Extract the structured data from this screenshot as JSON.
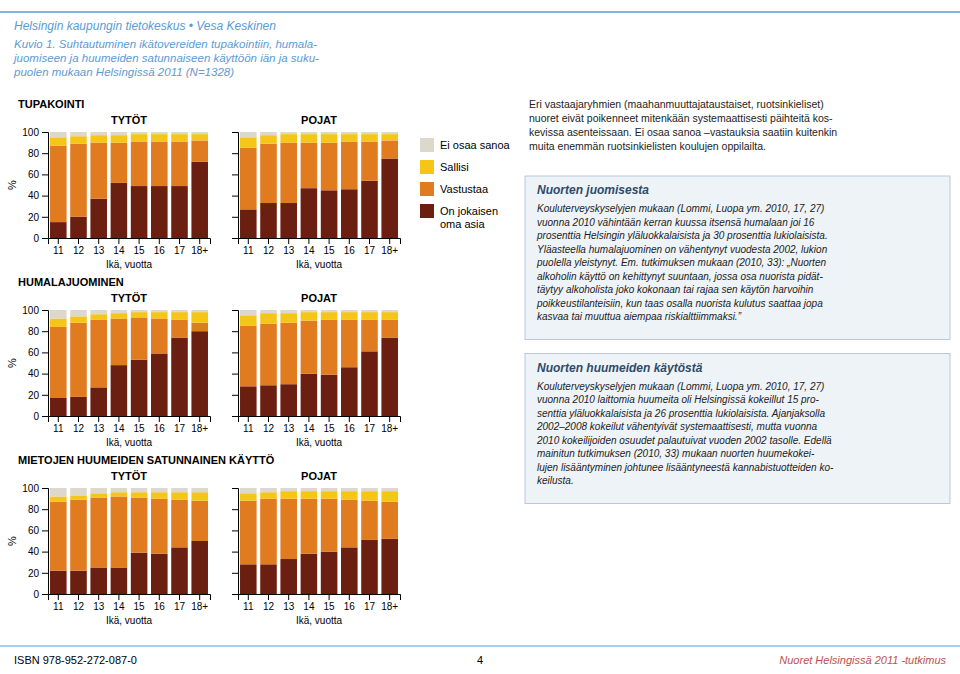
{
  "title": "Kuvio 1. Suhtautuminen ikätovereiden tupakointiin, humala-\njuomiseen ja huumeiden satunnaiseen käyttöön iän ja suku-\npuolen mukaan Helsingissä 2011 (N=1328)",
  "annotations": [
    "Helsingin kaupungin tietokeskus • Vesa Keskinen",
    "Eri vastaajaryhmien (maahanmuuttajataustaiset, ruotsinkieliset)\nnuoret eivät poikenneet mitenkään systemaattisesti päihteitä kos-\nkevissa asenteissaan.  Ei osaa sanoa –vastauksia saatiin kuitenkin\nmuita enemmän ruotsinkielisten koulujen oppilailta.",
    "Nuorten juomisesta",
    "Kouluterveyskyselyjen mukaan (Lommi, Luopa ym. 2010, 17, 27)\nvuonna 2010 vähintään kerran kuussa itsensä humalaan joi 16\nprosenttia Helsingin yläluokkalaisista ja 30 prosenttia lukiolaisista.\nYläasteella humalajuominen on vähentynyt vuodesta 2002, lukion\npuolella yleistynyt. Em. tutkimuksen mukaan (2010, 33): „Nuorten\nalkoholin käyttö on kehittynyt suuntaan, jossa osa nuorista pidät-\ntäytyy alkoholista joko kokonaan tai rajaa sen käytön harvoihin\npoikkeustilanteisiin, kun taas osalla nuorista kulutus saattaa jopa\nkasvaa tai muuttua aiempaa riskialttiimmaksi.”",
    "Nuorten huumeiden käytöstä",
    "Kouluterveyskyselyjen mukaan (Lommi, Luopa ym. 2010, 17, 27)\nvuonna 2010 laittomia huumeita oli Helsingissä kokeillut 15 pro-\nsenttia yläluokkalaisista ja 26 prosenttia lukiolaisista. Ajanjaksolla\n2002–2008 kokeilut vähentyivät systemaattisesti, mutta vuonna\n2010 kokeilijoiden osuudet palautuivat vuoden 2002 tasolle. Edellä\nmainitun tutkimuksen (2010, 33) mukaan nuorten huumekokei-\nlujen lisääntyminen johtunee lisääntyneestä kannabistuotteiden ko-\nkeilusta.",
    "ISBN 978-952-272-087-0",
    "4",
    "Nuoret Helsingissä 2011 -tutkimus"
  ],
  "chart_data": [
    {
      "type": "bar",
      "stacked": true,
      "grid": false,
      "legend": "right",
      "subtitle": "TUPAKOINTI",
      "title": "TYTÖT",
      "xlabel": "Ikä, vuotta",
      "ylabel": "%",
      "categories": [
        "11",
        "12",
        "13",
        "14",
        "15",
        "16",
        "17",
        "18+"
      ],
      "ylim": [
        0,
        100
      ],
      "yticks": [
        0,
        20,
        40,
        60,
        80,
        100
      ],
      "series": [
        {
          "name": "Ei osaa sanoa",
          "color": "#ddd8cc",
          "values": [
            5,
            4,
            3,
            3,
            2,
            2,
            2,
            2
          ]
        },
        {
          "name": "Sallisi",
          "color": "#f5c518",
          "values": [
            8,
            7,
            7,
            7,
            7,
            7,
            7,
            6
          ]
        },
        {
          "name": "Vastustaa",
          "color": "#e07b20",
          "values": [
            72,
            69,
            53,
            38,
            42,
            42,
            42,
            20
          ]
        },
        {
          "name": "On jokaisen\noma asia",
          "color": "#6b1f10",
          "values": [
            15,
            20,
            37,
            52,
            49,
            49,
            49,
            72
          ]
        }
      ]
    },
    {
      "type": "bar",
      "stacked": true,
      "grid": false,
      "tick_labels": "x",
      "title": "POJAT",
      "xlabel": "Ikä, vuotta",
      "categories": [
        "11",
        "12",
        "13",
        "14",
        "15",
        "16",
        "17",
        "18+"
      ],
      "ylim": [
        0,
        100
      ],
      "yticks": [
        0,
        20,
        40,
        60,
        80,
        100
      ],
      "series": [
        {
          "name": "Ei osaa sanoa",
          "color": "#ddd8cc",
          "values": [
            5,
            3,
            2,
            2,
            2,
            2,
            2,
            2
          ]
        },
        {
          "name": "Sallisi",
          "color": "#f5c518",
          "values": [
            10,
            8,
            8,
            8,
            8,
            7,
            7,
            6
          ]
        },
        {
          "name": "Vastustaa",
          "color": "#e07b20",
          "values": [
            58,
            56,
            57,
            43,
            45,
            45,
            37,
            17
          ]
        },
        {
          "name": "On jokaisen\noma asia",
          "color": "#6b1f10",
          "values": [
            27,
            33,
            33,
            47,
            45,
            46,
            54,
            75
          ]
        }
      ]
    },
    {
      "type": "bar",
      "stacked": true,
      "grid": false,
      "subtitle": "HUMALAJUOMINEN",
      "title": "TYTÖT",
      "xlabel": "Ikä, vuotta",
      "ylabel": "%",
      "categories": [
        "11",
        "12",
        "13",
        "14",
        "15",
        "16",
        "17",
        "18+"
      ],
      "ylim": [
        0,
        100
      ],
      "yticks": [
        0,
        20,
        40,
        60,
        80,
        100
      ],
      "series": [
        {
          "name": "Ei osaa sanoa",
          "color": "#ddd8cc",
          "values": [
            8,
            6,
            4,
            3,
            2,
            2,
            2,
            2
          ]
        },
        {
          "name": "Sallisi",
          "color": "#f5c518",
          "values": [
            8,
            6,
            5,
            5,
            5,
            6,
            7,
            10
          ]
        },
        {
          "name": "Vastustaa",
          "color": "#e07b20",
          "values": [
            67,
            70,
            64,
            44,
            40,
            33,
            17,
            8
          ]
        },
        {
          "name": "On jokaisen\noma asia",
          "color": "#6b1f10",
          "values": [
            17,
            18,
            27,
            48,
            53,
            59,
            74,
            80
          ]
        }
      ]
    },
    {
      "type": "bar",
      "stacked": true,
      "grid": false,
      "tick_labels": "x",
      "title": "POJAT",
      "xlabel": "Ikä, vuotta",
      "categories": [
        "11",
        "12",
        "13",
        "14",
        "15",
        "16",
        "17",
        "18+"
      ],
      "ylim": [
        0,
        100
      ],
      "yticks": [
        0,
        20,
        40,
        60,
        80,
        100
      ],
      "series": [
        {
          "name": "Ei osaa sanoa",
          "color": "#ddd8cc",
          "values": [
            5,
            3,
            3,
            2,
            2,
            2,
            2,
            2
          ]
        },
        {
          "name": "Sallisi",
          "color": "#f5c518",
          "values": [
            10,
            10,
            9,
            8,
            7,
            7,
            7,
            7
          ]
        },
        {
          "name": "Vastustaa",
          "color": "#e07b20",
          "values": [
            57,
            58,
            58,
            50,
            52,
            45,
            30,
            17
          ]
        },
        {
          "name": "On jokaisen\noma asia",
          "color": "#6b1f10",
          "values": [
            28,
            29,
            30,
            40,
            39,
            46,
            61,
            74
          ]
        }
      ]
    },
    {
      "type": "bar",
      "stacked": true,
      "grid": false,
      "subtitle": "MIETOJEN HUUMEIDEN SATUNNAINEN KÄYTTÖ",
      "title": "TYTÖT",
      "xlabel": "Ikä, vuotta",
      "ylabel": "%",
      "categories": [
        "11",
        "12",
        "13",
        "14",
        "15",
        "16",
        "17",
        "18+"
      ],
      "ylim": [
        0,
        100
      ],
      "yticks": [
        0,
        20,
        40,
        60,
        80,
        100
      ],
      "series": [
        {
          "name": "Ei osaa sanoa",
          "color": "#ddd8cc",
          "values": [
            8,
            7,
            5,
            4,
            4,
            4,
            4,
            4
          ]
        },
        {
          "name": "Sallisi",
          "color": "#f5c518",
          "values": [
            5,
            4,
            4,
            4,
            5,
            6,
            7,
            8
          ]
        },
        {
          "name": "Vastustaa",
          "color": "#e07b20",
          "values": [
            65,
            67,
            66,
            67,
            52,
            52,
            45,
            38
          ]
        },
        {
          "name": "On jokaisen\noma asia",
          "color": "#6b1f10",
          "values": [
            22,
            22,
            25,
            25,
            39,
            38,
            44,
            50
          ]
        }
      ]
    },
    {
      "type": "bar",
      "stacked": true,
      "grid": false,
      "tick_labels": "x",
      "title": "POJAT",
      "xlabel": "Ikä, vuotta",
      "categories": [
        "11",
        "12",
        "13",
        "14",
        "15",
        "16",
        "17",
        "18+"
      ],
      "ylim": [
        0,
        100
      ],
      "yticks": [
        0,
        20,
        40,
        60,
        80,
        100
      ],
      "series": [
        {
          "name": "Ei osaa sanoa",
          "color": "#ddd8cc",
          "values": [
            5,
            4,
            3,
            3,
            3,
            3,
            3,
            3
          ]
        },
        {
          "name": "Sallisi",
          "color": "#f5c518",
          "values": [
            7,
            6,
            7,
            7,
            7,
            8,
            9,
            10
          ]
        },
        {
          "name": "Vastustaa",
          "color": "#e07b20",
          "values": [
            60,
            62,
            57,
            52,
            50,
            45,
            37,
            35
          ]
        },
        {
          "name": "On jokaisen\noma asia",
          "color": "#6b1f10",
          "values": [
            28,
            28,
            33,
            38,
            40,
            44,
            51,
            52
          ]
        }
      ]
    }
  ]
}
